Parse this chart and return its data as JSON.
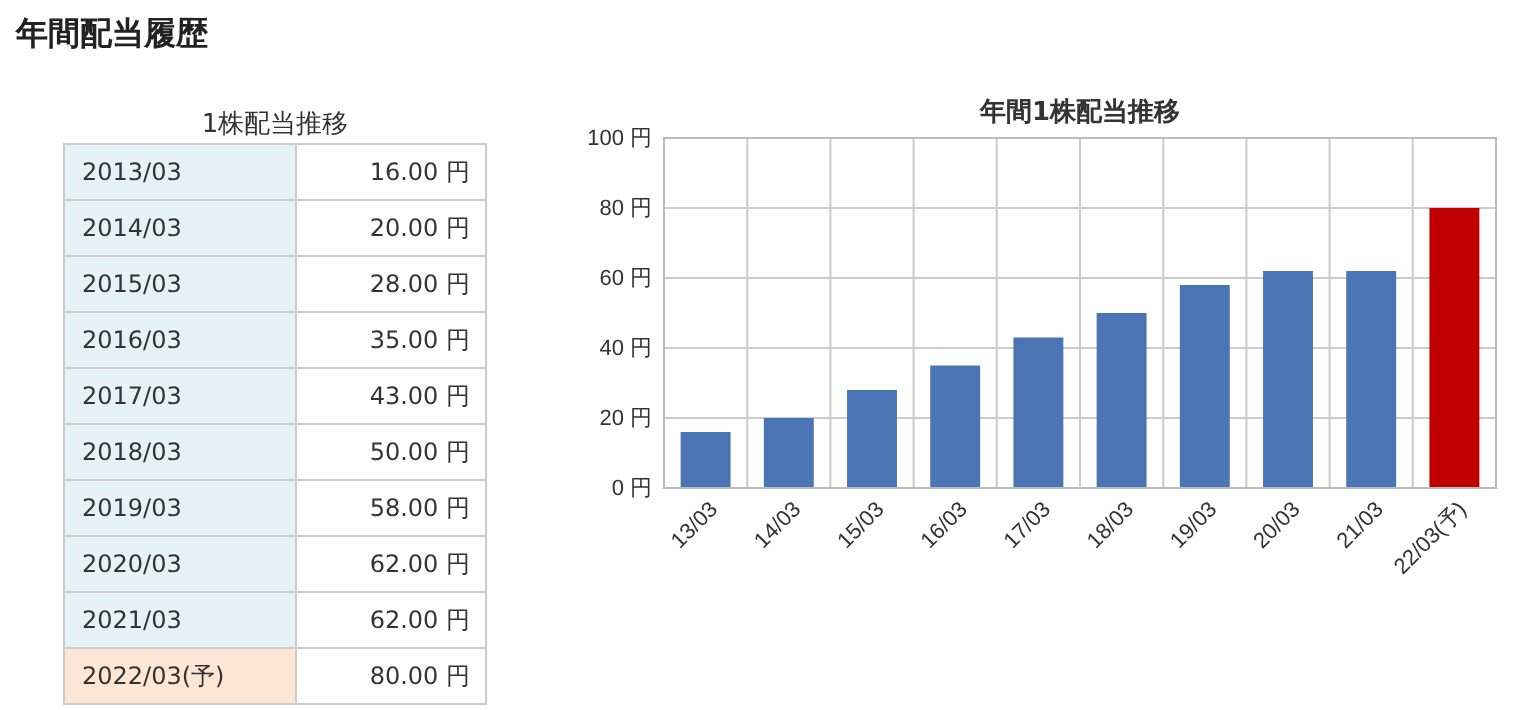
{
  "chart_data": [
    {
      "type": "other",
      "title": "1株配当推移",
      "annotations": [
        "年間配当履歴"
      ],
      "categories": [
        "2013/03",
        "2014/03",
        "2015/03",
        "2016/03",
        "2017/03",
        "2018/03",
        "2019/03",
        "2020/03",
        "2021/03",
        "2022/03(予)"
      ],
      "value_labels": [
        "16.00 円",
        "20.00 円",
        "28.00 円",
        "35.00 円",
        "43.00 円",
        "50.00 円",
        "58.00 円",
        "62.00 円",
        "62.00 円",
        "80.00 円"
      ]
    },
    {
      "type": "bar",
      "title": "年間1株配当推移",
      "categories": [
        "13/03",
        "14/03",
        "15/03",
        "16/03",
        "17/03",
        "18/03",
        "19/03",
        "20/03",
        "21/03",
        "22/03(予)"
      ],
      "values": [
        16,
        20,
        28,
        35,
        43,
        50,
        58,
        62,
        62,
        80
      ],
      "colors": [
        "#4a74b4",
        "#4a74b4",
        "#4a74b4",
        "#4a74b4",
        "#4a74b4",
        "#4a74b4",
        "#4a74b4",
        "#4a74b4",
        "#4a74b4",
        "#c00000"
      ],
      "ylim": [
        0,
        100
      ],
      "yticks": [
        {
          "value": 0,
          "label": "0 円"
        },
        {
          "value": 20,
          "label": "20 円"
        },
        {
          "value": 40,
          "label": "40 円"
        },
        {
          "value": 60,
          "label": "60 円"
        },
        {
          "value": 80,
          "label": "80 円"
        },
        {
          "value": 100,
          "label": "100 円"
        }
      ],
      "grid": true
    }
  ]
}
